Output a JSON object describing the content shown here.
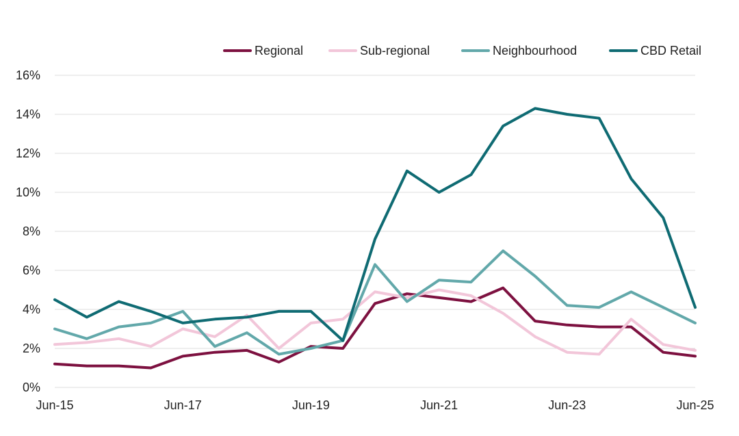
{
  "chart_data": {
    "type": "line",
    "title": "",
    "xlabel": "",
    "ylabel": "",
    "ylim": [
      0,
      16
    ],
    "y_ticks": [
      0,
      2,
      4,
      6,
      8,
      10,
      12,
      14,
      16
    ],
    "y_tick_labels": [
      "0%",
      "2%",
      "4%",
      "6%",
      "8%",
      "10%",
      "12%",
      "14%",
      "16%"
    ],
    "x": [
      "Jun-15",
      "Dec-15",
      "Jun-16",
      "Dec-16",
      "Jun-17",
      "Dec-17",
      "Jun-18",
      "Dec-18",
      "Jun-19",
      "Dec-19",
      "Jun-20",
      "Dec-20",
      "Jun-21",
      "Dec-21",
      "Jun-22",
      "Dec-22",
      "Jun-23",
      "Dec-23",
      "Jun-24",
      "Dec-24",
      "Jun-25"
    ],
    "x_tick_labels": [
      {
        "index": 0,
        "label": "Jun-15"
      },
      {
        "index": 4,
        "label": "Jun-17"
      },
      {
        "index": 8,
        "label": "Jun-19"
      },
      {
        "index": 12,
        "label": "Jun-21"
      },
      {
        "index": 16,
        "label": "Jun-23"
      },
      {
        "index": 20,
        "label": "Jun-25"
      }
    ],
    "grid": "horizontal",
    "legend_position": "top-right",
    "series": [
      {
        "name": "Regional",
        "color": "#7d1140",
        "values": [
          1.2,
          1.1,
          1.1,
          1.0,
          1.6,
          1.8,
          1.9,
          1.3,
          2.1,
          2.0,
          4.3,
          4.8,
          4.6,
          4.4,
          5.1,
          3.4,
          3.2,
          3.1,
          3.1,
          1.8,
          1.6
        ]
      },
      {
        "name": "Sub-regional",
        "color": "#f2c6d9",
        "values": [
          2.2,
          2.3,
          2.5,
          2.1,
          3.0,
          2.6,
          3.7,
          2.0,
          3.3,
          3.5,
          4.9,
          4.6,
          5.0,
          4.7,
          3.8,
          2.6,
          1.8,
          1.7,
          3.5,
          2.2,
          1.9
        ]
      },
      {
        "name": "Neighbourhood",
        "color": "#62a8aa",
        "values": [
          3.0,
          2.5,
          3.1,
          3.3,
          3.9,
          2.1,
          2.8,
          1.7,
          2.0,
          2.4,
          6.3,
          4.4,
          5.5,
          5.4,
          7.0,
          5.7,
          4.2,
          4.1,
          4.9,
          4.1,
          3.3
        ]
      },
      {
        "name": "CBD Retail",
        "color": "#0f6b73",
        "values": [
          4.5,
          3.6,
          4.4,
          3.9,
          3.3,
          3.5,
          3.6,
          3.9,
          3.9,
          2.4,
          7.6,
          11.1,
          10.0,
          10.9,
          13.4,
          14.3,
          14.0,
          13.8,
          10.7,
          8.7,
          4.1
        ]
      }
    ]
  }
}
